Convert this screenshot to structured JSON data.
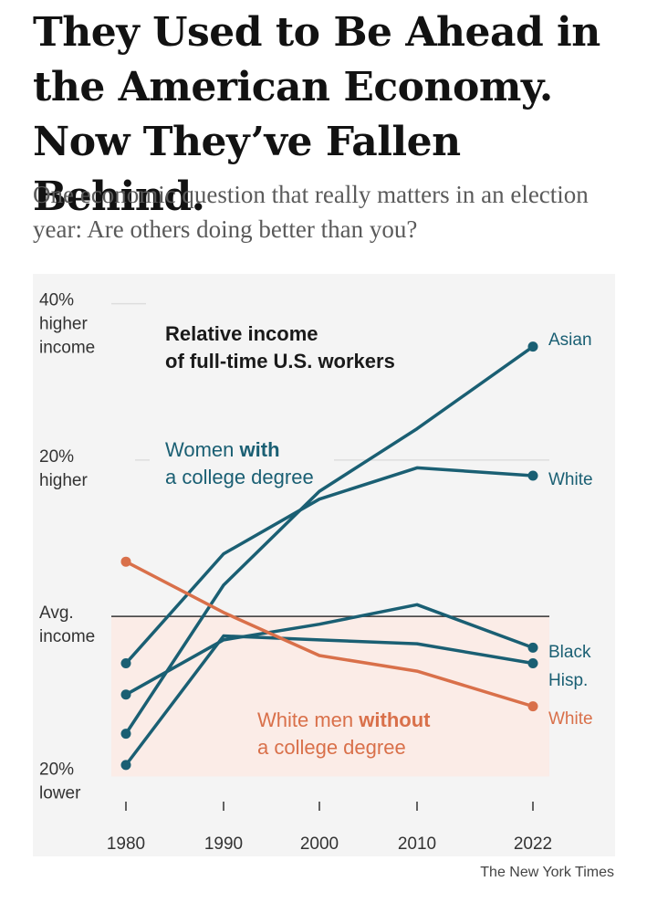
{
  "headline": "They Used to Be Ahead in the American Economy. Now They’ve Fallen Behind.",
  "subhead": "One economic question that really matters in an election year: Are others doing better than you?",
  "credit": "The New York Times",
  "chart_data": {
    "type": "line",
    "title": "Relative income",
    "subtitle": "of full-time U.S. workers",
    "x": [
      "1980",
      "1990",
      "2000",
      "2010",
      "2022"
    ],
    "y_tick_labels": [
      {
        "value": 40,
        "lines": [
          "40%",
          "higher",
          "income"
        ]
      },
      {
        "value": 20,
        "lines": [
          "20%",
          "higher"
        ]
      },
      {
        "value": 0,
        "lines": [
          "Avg.",
          "income"
        ]
      },
      {
        "value": -20,
        "lines": [
          "20%",
          "lower"
        ]
      }
    ],
    "ylim": [
      -21,
      41
    ],
    "baseline_value": 0,
    "groups": [
      {
        "label_lines": [
          {
            "text": "Women ",
            "bold": "with"
          },
          {
            "text": "a college degree"
          }
        ],
        "color": "#1a5f73"
      },
      {
        "label_lines": [
          {
            "text": "White men ",
            "bold": "without"
          },
          {
            "text": "a college degree"
          }
        ],
        "color": "#d9704a"
      }
    ],
    "series": [
      {
        "name": "Asian",
        "group": "Women with a college degree",
        "values": [
          -15,
          4,
          16,
          24,
          34.5
        ],
        "color": "#1a5f73"
      },
      {
        "name": "White",
        "group": "Women with a college degree",
        "values": [
          -6,
          8,
          15,
          19,
          18
        ],
        "color": "#1a5f73"
      },
      {
        "name": "Black",
        "group": "Women with a college degree",
        "values": [
          -10,
          -3,
          -1,
          1.5,
          -4
        ],
        "color": "#1a5f73"
      },
      {
        "name": "Hisp.",
        "group": "Women with a college degree",
        "values": [
          -19,
          -2.5,
          -3,
          -3.5,
          -6
        ],
        "color": "#1a5f73"
      },
      {
        "name": "White",
        "group": "White men without a college degree",
        "values": [
          7,
          0.5,
          -5,
          -7,
          -11.5
        ],
        "color": "#d9704a"
      }
    ],
    "colors": {
      "women": "#1a5f73",
      "men": "#d9704a",
      "below_avg_shade": "#fbece7",
      "baseline": "#333333"
    }
  }
}
